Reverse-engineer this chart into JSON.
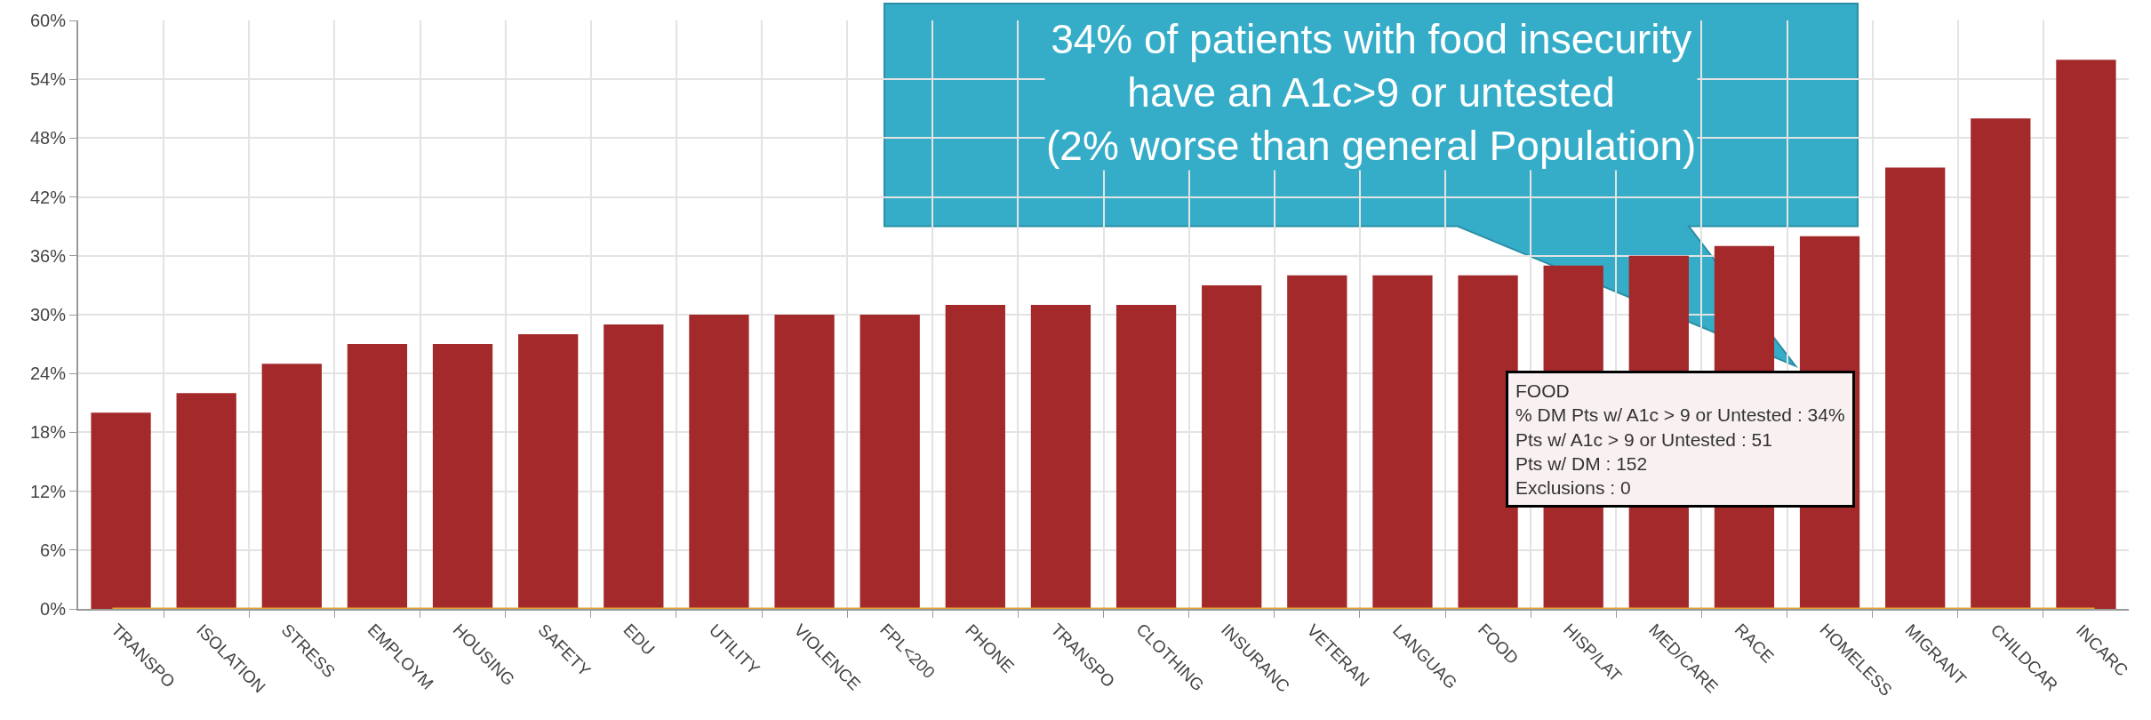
{
  "chart_data": {
    "type": "bar",
    "categories": [
      "TRANSPO",
      "ISOLATION",
      "STRESS",
      "EMPLOYM",
      "HOUSING",
      "SAFETY",
      "EDU",
      "UTILITY",
      "VIOLENCE",
      "FPL<200",
      "PHONE",
      "TRANSPO",
      "CLOTHING",
      "INSURANC",
      "VETERAN",
      "LANGUAG",
      "FOOD",
      "HISP/LAT",
      "MED/CARE",
      "RACE",
      "HOMELESS",
      "MIGRANT",
      "CHILDCAR",
      "INCARC"
    ],
    "values": [
      20,
      22,
      25,
      27,
      27,
      28,
      29,
      30,
      30,
      30,
      31,
      31,
      31,
      33,
      34,
      34,
      34,
      35,
      36,
      37,
      38,
      45,
      50,
      56
    ],
    "color": "#a4292b",
    "ylim": [
      0,
      60
    ],
    "yticks": [
      {
        "value": 0,
        "label": "0%"
      },
      {
        "value": 6,
        "label": "6%"
      },
      {
        "value": 12,
        "label": "12%"
      },
      {
        "value": 18,
        "label": "18%"
      },
      {
        "value": 24,
        "label": "24%"
      },
      {
        "value": 30,
        "label": "30%"
      },
      {
        "value": 36,
        "label": "36%"
      },
      {
        "value": 42,
        "label": "42%"
      },
      {
        "value": 48,
        "label": "48%"
      },
      {
        "value": 54,
        "label": "54%"
      },
      {
        "value": 60,
        "label": "60%"
      }
    ],
    "grid": true,
    "ref_lines": [
      {
        "axis": "y",
        "value": 0,
        "color": "#e3a534"
      }
    ],
    "annotations": [
      "34% of patients with food insecurity\nhave an A1c>9 or untested\n(2% worse than general Population)",
      "FOOD\n% DM Pts w/ A1c > 9 or Untested : 34%\nPts w/ A1c > 9 or Untested : 51\nPts w/ DM : 152\nExclusions : 0"
    ]
  }
}
